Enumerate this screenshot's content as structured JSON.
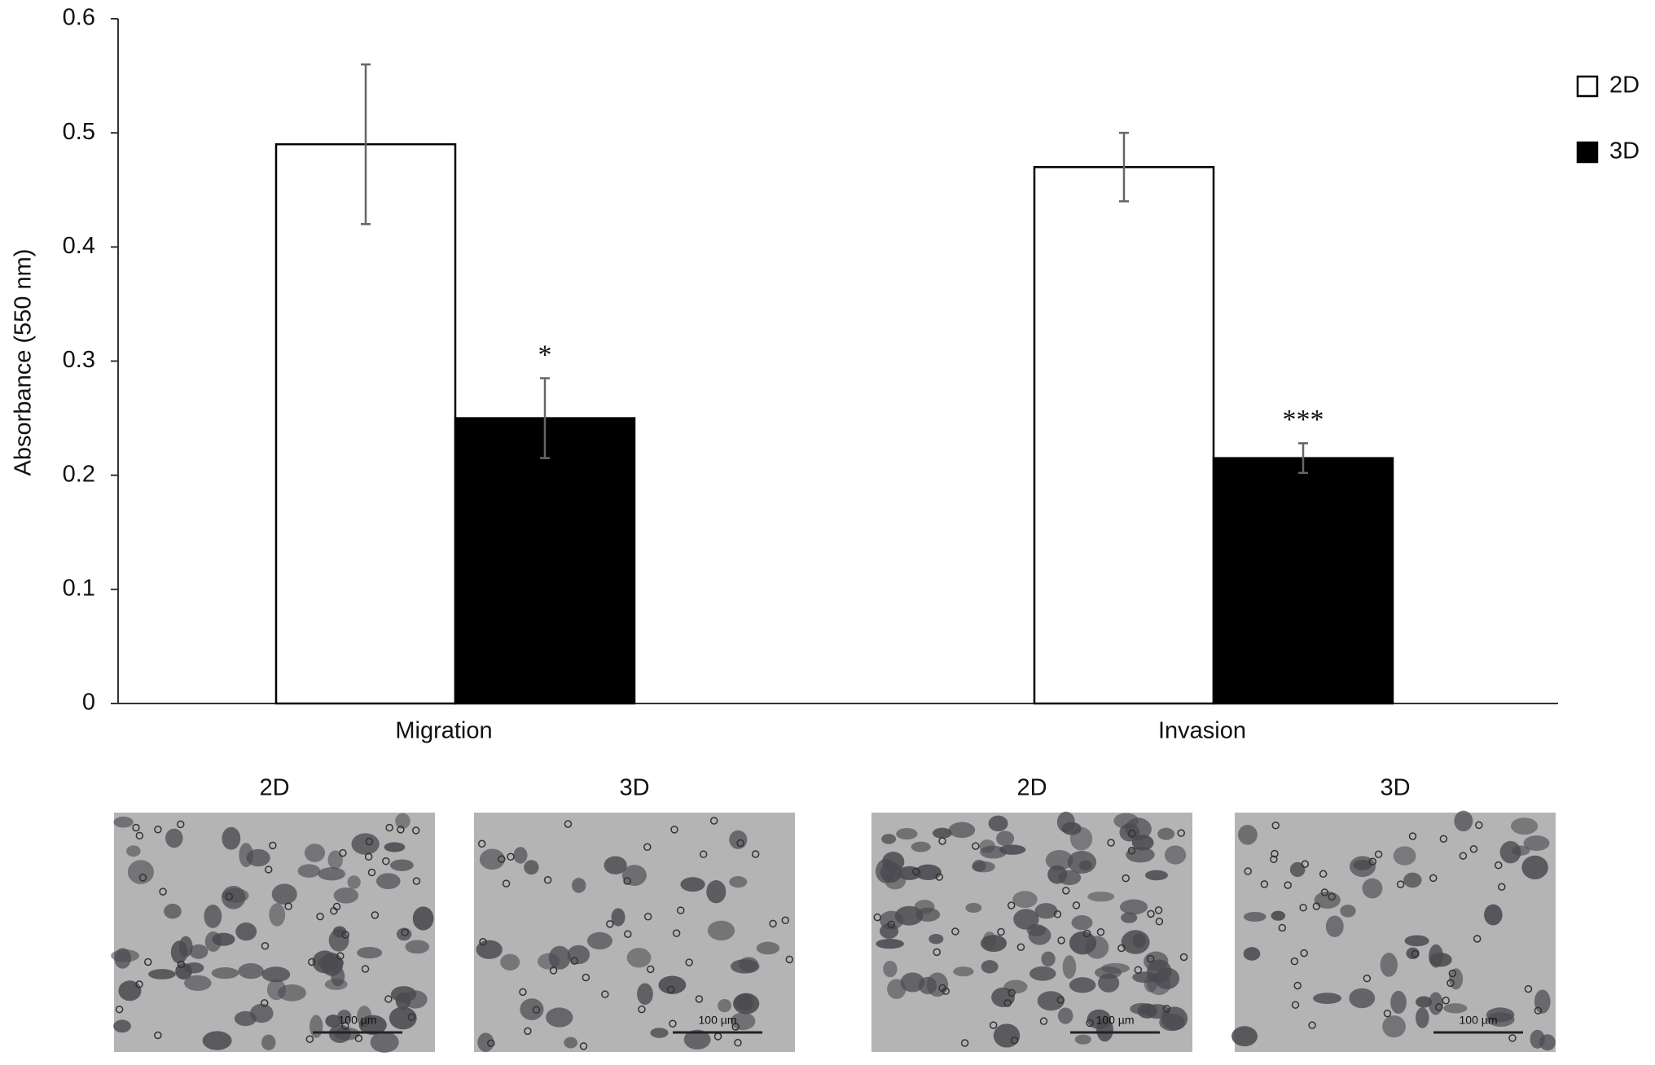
{
  "chart_data": {
    "type": "bar",
    "ylabel": "Absorbance (550 nm)",
    "categories": [
      "Migration",
      "Invasion"
    ],
    "series": [
      {
        "name": "2D",
        "color": "#ffffff",
        "values": [
          0.49,
          0.47
        ],
        "errors": [
          0.07,
          0.03
        ]
      },
      {
        "name": "3D",
        "color": "#000000",
        "values": [
          0.25,
          0.215
        ],
        "errors": [
          0.035,
          0.013
        ],
        "value_annotations": [
          "*",
          "***"
        ]
      }
    ],
    "ylim": [
      0,
      0.6
    ],
    "yticks": [
      0,
      0.1,
      0.2,
      0.3,
      0.4,
      0.5,
      0.6
    ],
    "legend": "top-right"
  },
  "panels": [
    {
      "label": "2D",
      "scale_bar": "100 µm"
    },
    {
      "label": "3D",
      "scale_bar": "100 µm"
    },
    {
      "label": "2D",
      "scale_bar": "100 µm"
    },
    {
      "label": "3D",
      "scale_bar": "100 µm"
    }
  ]
}
